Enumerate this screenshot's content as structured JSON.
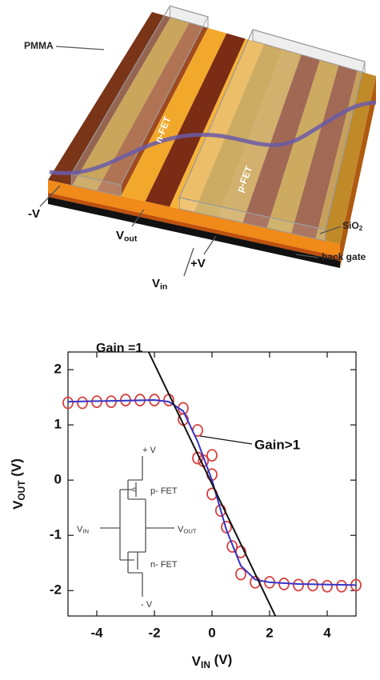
{
  "diagram": {
    "pmma": "PMMA",
    "n_fet": "n-FET",
    "p_fet": "p-FET",
    "minus_v": "-V",
    "v_out": [
      {
        "text": "V"
      },
      {
        "sub": "out"
      }
    ],
    "plus_v": "+V",
    "v_in": [
      {
        "text": "V"
      },
      {
        "sub": "in"
      }
    ],
    "sio2": [
      {
        "text": "SiO"
      },
      {
        "sub": "2"
      }
    ],
    "back_gate": "back gate"
  },
  "inset": {
    "plus_v": "+ V",
    "p_fet": "p- FET",
    "v_in": [
      {
        "text": "V"
      },
      {
        "sub": "IN"
      }
    ],
    "v_out": [
      {
        "text": "V"
      },
      {
        "sub": "OUT"
      }
    ],
    "n_fet": "n- FET",
    "minus_v": "- V"
  },
  "chart_data": {
    "type": "scatter",
    "xlabel": [
      {
        "text": "V"
      },
      {
        "sub": "IN"
      },
      {
        "text": " (V)"
      }
    ],
    "ylabel": [
      {
        "text": "V"
      },
      {
        "sub": "OUT"
      },
      {
        "text": " (V)"
      }
    ],
    "xlim": [
      -5,
      5
    ],
    "ylim": [
      -2.46,
      2.32
    ],
    "xticks": [
      -4,
      -2,
      0,
      2,
      4
    ],
    "yticks": [
      -2,
      -1,
      0,
      1,
      2
    ],
    "annotations": [
      "Gain =1",
      "Gain>1"
    ],
    "series": [
      {
        "type": "scatter",
        "color": "#d84040",
        "x": [
          -5,
          -4.5,
          -4,
          -3.5,
          -3,
          -2.5,
          -2,
          -1.5,
          -1,
          -1,
          -0.5,
          -0.5,
          -0.3,
          0,
          0,
          0,
          0.3,
          0.5,
          0.7,
          1,
          1,
          1.5,
          2,
          2.5,
          3,
          3.5,
          4,
          4.5,
          5
        ],
        "values": [
          1.4,
          1.4,
          1.42,
          1.42,
          1.45,
          1.45,
          1.45,
          1.45,
          1.3,
          1.1,
          0.9,
          0.4,
          0.35,
          0.45,
          0.1,
          -0.25,
          -0.55,
          -0.85,
          -1.2,
          -1.3,
          -1.7,
          -1.85,
          -1.85,
          -1.88,
          -1.9,
          -1.9,
          -1.92,
          -1.92,
          -1.9
        ]
      },
      {
        "type": "line",
        "color": "#3535c8",
        "x": [
          -5,
          -2,
          -1.5,
          -1,
          -0.5,
          0,
          0.5,
          1,
          1.5,
          2,
          3,
          5
        ],
        "values": [
          1.42,
          1.45,
          1.42,
          1.25,
          0.7,
          0,
          -0.9,
          -1.55,
          -1.8,
          -1.85,
          -1.88,
          -1.9
        ]
      },
      {
        "type": "line",
        "color": "#111111",
        "x": [
          -2.2,
          2.2
        ],
        "values": [
          2.32,
          -2.46
        ]
      }
    ]
  }
}
